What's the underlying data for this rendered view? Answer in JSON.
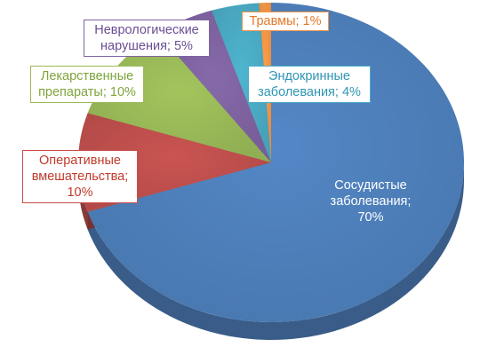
{
  "chart_data": {
    "type": "pie",
    "style": "3d",
    "slices": [
      {
        "key": "vascular",
        "name": "Сосудистые заболевания",
        "value": 70,
        "color": "#4f81bd",
        "label_lines": [
          "Сосудистые",
          "заболевания;",
          "70%"
        ]
      },
      {
        "key": "surgery",
        "name": "Оперативные вмешательства",
        "value": 10,
        "color": "#c0504d",
        "label_lines": [
          "Оперативные",
          "вмешательства;",
          "10%"
        ]
      },
      {
        "key": "drugs",
        "name": "Лекарственные препараты",
        "value": 10,
        "color": "#9bbb59",
        "label_lines": [
          "Лекарственные",
          "препараты; 10%"
        ]
      },
      {
        "key": "neuro",
        "name": "Неврологические нарушения",
        "value": 5,
        "color": "#8064a2",
        "label_lines": [
          "Неврологические",
          "нарушения; 5%"
        ]
      },
      {
        "key": "endo",
        "name": "Эндокринные заболевания",
        "value": 4,
        "color": "#4bacc6",
        "label_lines": [
          "Эндокринные",
          "заболевания; 4%"
        ]
      },
      {
        "key": "trauma",
        "name": "Травмы",
        "value": 1,
        "color": "#f79646",
        "label_lines": [
          "Травмы; 1%"
        ]
      }
    ]
  }
}
